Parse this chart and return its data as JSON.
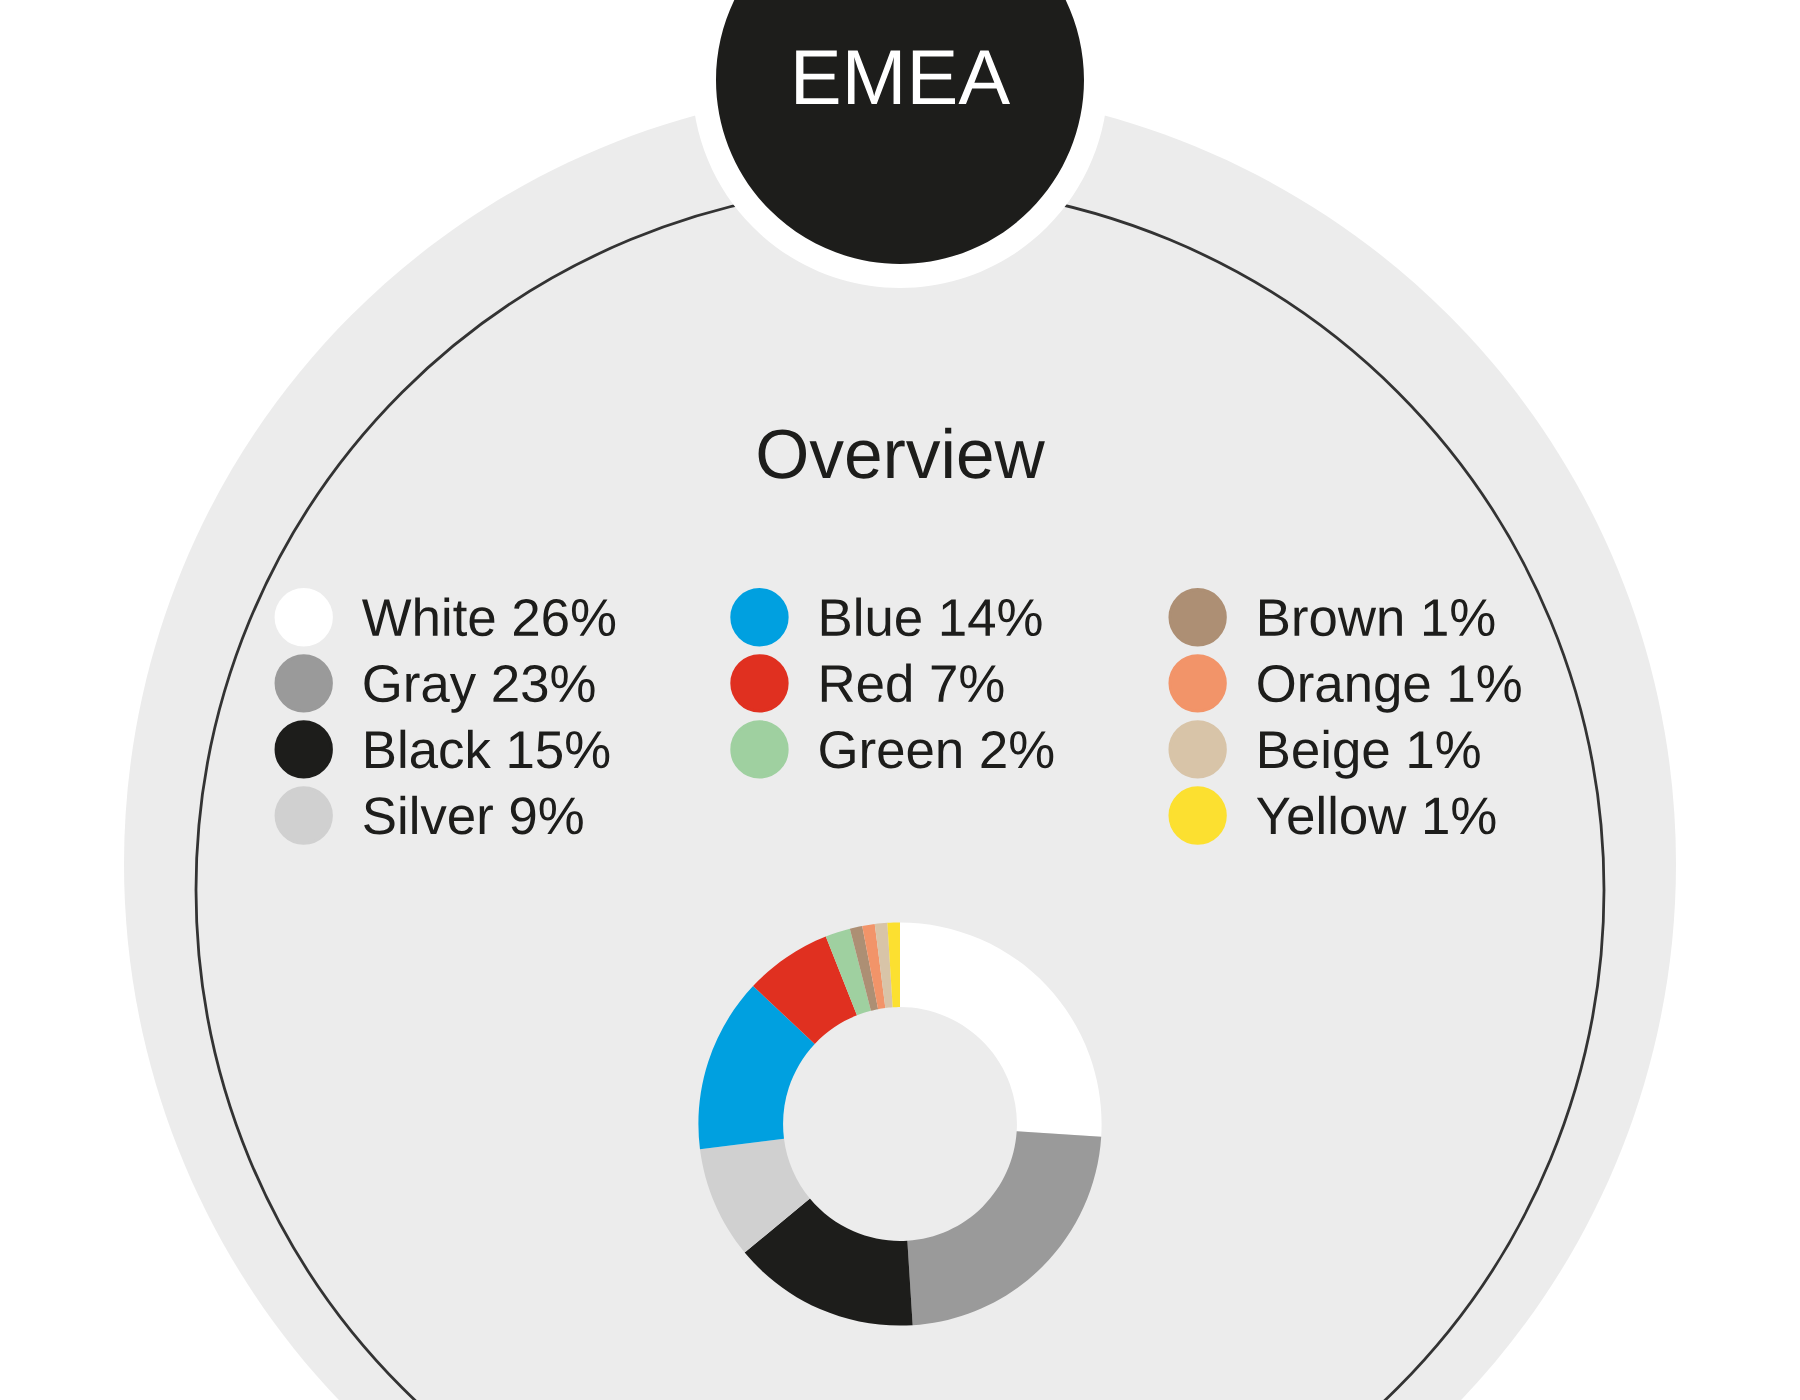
{
  "chart_data": {
    "type": "donut",
    "title": "EMEA",
    "subtitle": "Overview",
    "categories": [
      "White",
      "Gray",
      "Black",
      "Silver",
      "Blue",
      "Red",
      "Green",
      "Brown",
      "Orange",
      "Beige",
      "Yellow"
    ],
    "values": [
      26,
      23,
      15,
      9,
      14,
      7,
      2,
      1,
      1,
      1,
      1
    ],
    "colors": [
      "#ffffff",
      "#9a9a9a",
      "#1d1d1b",
      "#d0d0d0",
      "#00a0e0",
      "#e03020",
      "#9fd0a0",
      "#ad8f74",
      "#f29469",
      "#d8c4a8",
      "#fce030"
    ],
    "value_labels": [
      "26%",
      "23%",
      "15%",
      "9%",
      "14%",
      "7%",
      "2%",
      "1%",
      "1%",
      "1%",
      "1%"
    ],
    "legend": "top"
  }
}
